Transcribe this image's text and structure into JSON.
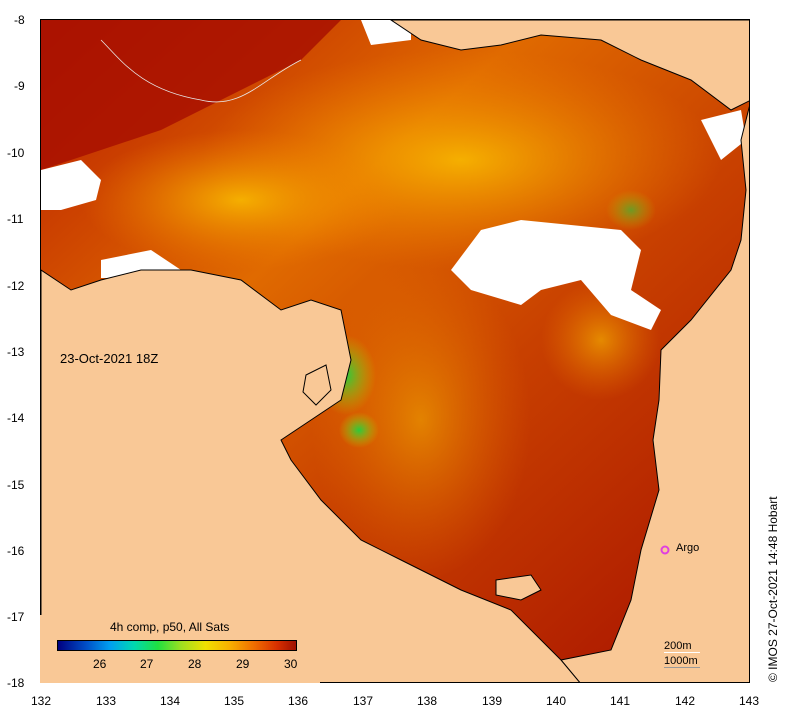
{
  "map": {
    "date_label": "23-Oct-2021 18Z",
    "x_ticks": [
      "132",
      "133",
      "134",
      "135",
      "136",
      "137",
      "138",
      "139",
      "140",
      "141",
      "142",
      "143"
    ],
    "y_ticks": [
      "-8",
      "-9",
      "-10",
      "-11",
      "-12",
      "-13",
      "-14",
      "-15",
      "-16",
      "-17",
      "-18"
    ],
    "argo_label": "Argo",
    "colors": {
      "land": "#f9c896",
      "sst_hot": "#a01000",
      "sst_warm": "#f08000",
      "sst_mid": "#f8c000",
      "sst_cool": "#30d040",
      "cloud": "#ffffff",
      "argo": "#e040e0"
    }
  },
  "legend": {
    "title": "4h comp, p50, All Sats",
    "ticks": [
      "26",
      "27",
      "28",
      "29",
      "30"
    ]
  },
  "scale": {
    "depth1": "200m",
    "depth2": "1000m"
  },
  "credit": "© IMOS 27-Oct-2021 14:48 Hobart"
}
